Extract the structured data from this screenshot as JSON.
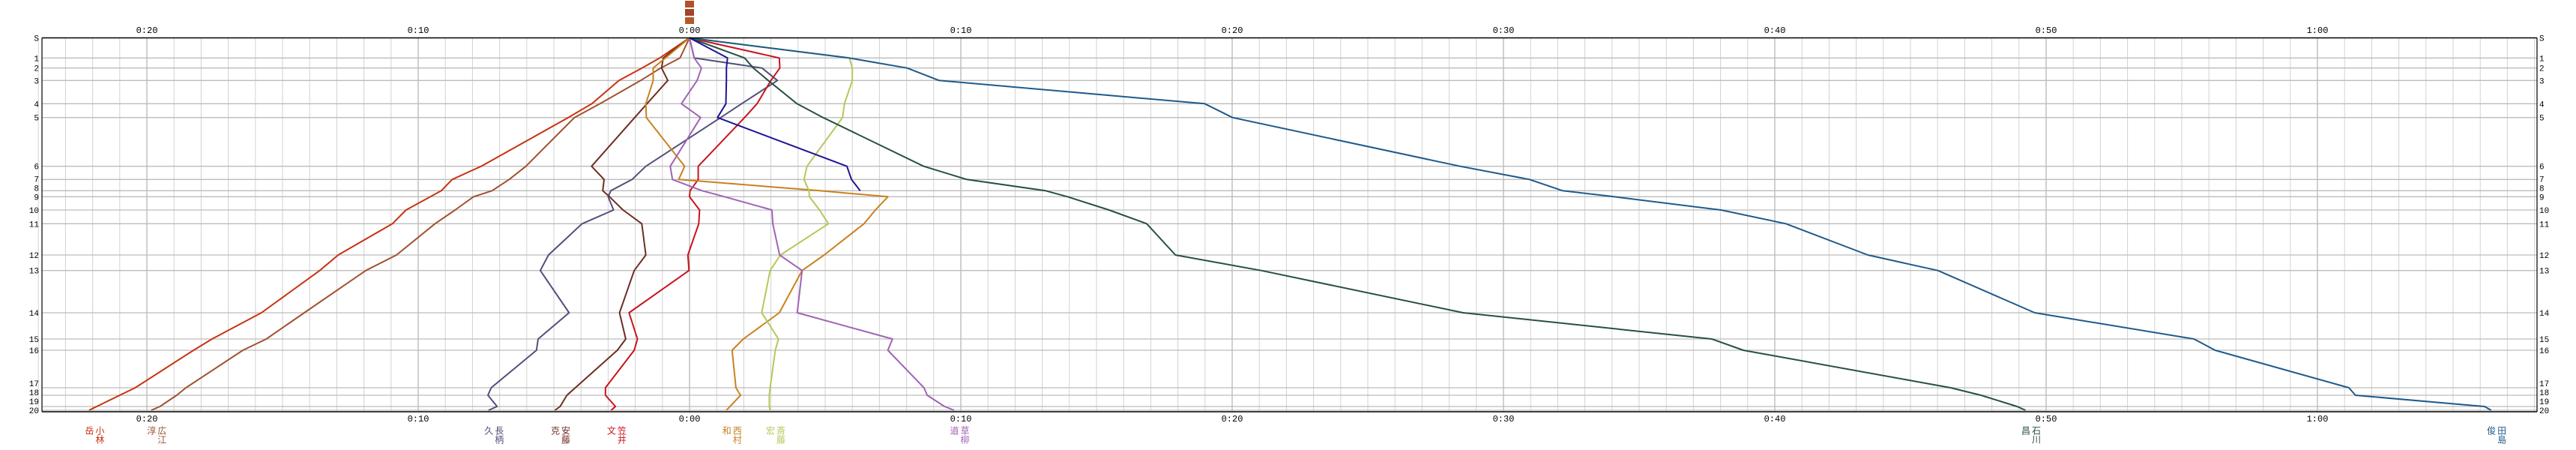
{
  "chart_data": {
    "type": "line",
    "title": "",
    "xlabel": "",
    "ylabel": "",
    "grid": true,
    "x_unit": "minutes relative to leader",
    "xlim": [
      -24,
      68.1
    ],
    "x_ticks": [
      {
        "value": -20,
        "label": "0:20"
      },
      {
        "value": -10,
        "label": "0:10"
      },
      {
        "value": 0,
        "label": "0:00"
      },
      {
        "value": 10,
        "label": "0:10"
      },
      {
        "value": 20,
        "label": "0:20"
      },
      {
        "value": 30,
        "label": "0:30"
      },
      {
        "value": 40,
        "label": "0:40"
      },
      {
        "value": 50,
        "label": "0:50"
      },
      {
        "value": 60,
        "label": "1:00"
      }
    ],
    "stations": [
      "S",
      "1",
      "2",
      "3",
      "4",
      "5",
      "6",
      "7",
      "8",
      "9",
      "10",
      "11",
      "12",
      "13",
      "14",
      "15",
      "16",
      "17",
      "18",
      "19",
      "20"
    ],
    "series": [
      {
        "name": "小林岳",
        "color": "#c8320f",
        "values": [
          0,
          -1.1,
          -1.75,
          -2.6,
          -3.6,
          -4.47,
          -7.68,
          -8.75,
          -9.15,
          -9.55,
          -10.45,
          -10.95,
          -12.95,
          -13.63,
          -15.78,
          -17.6,
          -18.28,
          -20.43,
          -21.0,
          -21.85,
          -22.13
        ]
      },
      {
        "name": "広江淳",
        "color": "#a0522d",
        "values": [
          0,
          -0.35,
          -1.06,
          -1.8,
          -3.3,
          -4.24,
          -6.03,
          -6.65,
          -7.28,
          -7.96,
          -8.64,
          -9.38,
          -10.8,
          -11.93,
          -14.2,
          -15.6,
          -16.46,
          -18.56,
          -18.9,
          -19.52,
          -19.84
        ]
      },
      {
        "name": "長柄久",
        "color": "#50507a",
        "values": [
          0,
          0.17,
          2.67,
          3.24,
          1.92,
          1.15,
          -1.61,
          -2.12,
          -2.9,
          -3.0,
          -2.8,
          -3.96,
          -5.2,
          -5.5,
          -4.44,
          -5.58,
          -5.64,
          -7.31,
          -7.43,
          -7.09,
          -7.41
        ]
      },
      {
        "name": "安藤克",
        "color": "#6e2d23",
        "values": [
          0,
          -0.97,
          -1.03,
          -0.8,
          -1.57,
          -2.02,
          -3.61,
          -3.15,
          -3.2,
          -2.95,
          -2.45,
          -1.76,
          -1.61,
          -2.04,
          -2.58,
          -2.35,
          -2.66,
          -4.21,
          -4.52,
          -4.77,
          -4.96
        ]
      },
      {
        "name": "笠井文",
        "color": "#c8141e",
        "values": [
          0,
          3.31,
          3.33,
          3.0,
          2.49,
          2.03,
          0.32,
          0.32,
          0.02,
          0.0,
          0.37,
          0.34,
          -0.06,
          -0.02,
          -2.23,
          -1.92,
          -2.04,
          -3.1,
          -3.1,
          -2.73,
          -2.89
        ]
      },
      {
        "name": "西村和",
        "color": "#c8821e",
        "values": [
          0,
          -0.89,
          -1.34,
          -1.34,
          -1.61,
          -1.59,
          -0.18,
          -0.4,
          4.8,
          7.31,
          6.85,
          6.43,
          4.96,
          4.15,
          3.31,
          1.98,
          1.57,
          1.71,
          1.88,
          1.49,
          1.36
        ]
      },
      {
        "name": "斎藤宏",
        "color": "#b4c85a",
        "values": [
          0,
          5.89,
          6.0,
          6.0,
          5.71,
          5.64,
          4.33,
          4.22,
          4.4,
          4.42,
          4.79,
          5.12,
          3.35,
          2.97,
          2.66,
          3.28,
          3.16,
          2.97,
          2.94,
          2.94,
          2.97
        ]
      },
      {
        "name": "草柳道",
        "color": "#a064b4",
        "values": [
          0,
          0.17,
          0.44,
          0.28,
          -0.3,
          0.41,
          -0.71,
          -0.63,
          0.46,
          1.29,
          3.04,
          3.07,
          3.32,
          4.15,
          3.97,
          7.48,
          7.31,
          8.64,
          8.76,
          9.4,
          9.75
        ]
      },
      {
        "name": "石川昌",
        "color": "#285040",
        "values": [
          0,
          2.03,
          2.35,
          2.9,
          3.96,
          4.92,
          8.63,
          10.22,
          13.12,
          13.93,
          15.46,
          16.85,
          17.91,
          21.07,
          28.51,
          37.68,
          38.84,
          46.48,
          47.6,
          48.93,
          49.24
        ]
      },
      {
        "name": "田島俊",
        "color": "#1e5a8c",
        "values": [
          0,
          5.88,
          8.02,
          9.2,
          18.99,
          20.01,
          28.4,
          30.96,
          32.18,
          34.08,
          38.02,
          40.41,
          43.43,
          46.01,
          49.58,
          55.45,
          56.23,
          61.16,
          61.4,
          66.16,
          66.4
        ]
      },
      {
        "color": "#1e1496",
        "values": [
          0,
          1.4,
          1.36,
          1.36,
          1.34,
          1.03,
          5.8,
          5.97,
          6.29
        ]
      }
    ]
  }
}
